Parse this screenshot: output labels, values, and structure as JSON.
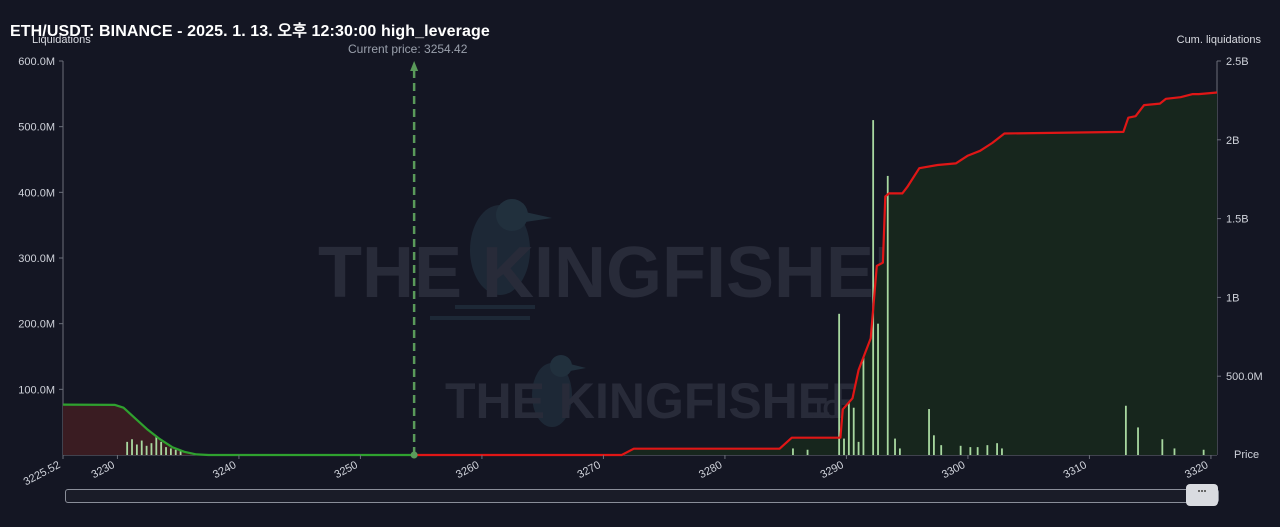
{
  "header": {
    "title": "ETH/USDT: BINANCE - 2025. 1. 13. 오후 12:30:00 high_leverage",
    "left_axis_title": "Liquidations",
    "right_axis_title": "Cum. liquidations",
    "current_price_label": "Current price: 3254.42",
    "x_axis_title": "Price"
  },
  "watermark": {
    "text": "THE KINGFISHER",
    "suffix": ".IO"
  },
  "colors": {
    "background": "#141623",
    "long_cum_line": "#2fa12f",
    "short_cum_line": "#e01616",
    "long_fill": "#3a1c22",
    "short_fill": "#17261d",
    "bars": "#a8d8a0",
    "current_price_line": "#5a9a5a"
  },
  "chart_data": {
    "type": "line",
    "title": "ETH/USDT: BINANCE - 2025. 1. 13. 오후 12:30:00 high_leverage",
    "xlabel": "Price",
    "ylabel_left": "Liquidations",
    "ylabel_right": "Cum. liquidations",
    "x_range": [
      3225.52,
      3320.5
    ],
    "x_ticks": [
      3225.52,
      3230,
      3240,
      3250,
      3260,
      3270,
      3280,
      3290,
      3300,
      3310,
      3320
    ],
    "x_tick_labels": [
      "3225.52",
      "3230",
      "3240",
      "3250",
      "3260",
      "3270",
      "3280",
      "3290",
      "3300",
      "3310",
      "3320"
    ],
    "ylim_left": [
      0,
      600000000
    ],
    "y_left_ticks": [
      100000000,
      200000000,
      300000000,
      400000000,
      500000000,
      600000000
    ],
    "y_left_tick_labels": [
      "100.0M",
      "200.0M",
      "300.0M",
      "400.0M",
      "500.0M",
      "600.0M"
    ],
    "ylim_right": [
      0,
      2500000000
    ],
    "y_right_ticks": [
      500000000,
      1000000000,
      1500000000,
      2000000000,
      2500000000
    ],
    "y_right_tick_labels": [
      "500.0M",
      "1B",
      "1.5B",
      "2B",
      "2.5B"
    ],
    "current_price": 3254.42,
    "series": [
      {
        "name": "long",
        "axis": "right",
        "x": [
          3225.52,
          3229.8,
          3230.5,
          3231.5,
          3232.5,
          3233.5,
          3234.5,
          3235.5,
          3236.5,
          3237.5,
          3254.42
        ],
        "y": [
          320000000,
          318000000,
          300000000,
          230000000,
          160000000,
          100000000,
          50000000,
          20000000,
          4000000,
          0,
          0
        ]
      },
      {
        "name": "short",
        "axis": "right",
        "x": [
          3254.42,
          3271.5,
          3272.5,
          3284.5,
          3285.5,
          3289.5,
          3289.7,
          3290.5,
          3291.0,
          3292.0,
          3292.5,
          3293.0,
          3293.2,
          3293.5,
          3294.6,
          3295.0,
          3296.0,
          3297.5,
          3299.0,
          3300.0,
          3301.0,
          3302.0,
          3303.0,
          3312.8,
          3313.2,
          3313.8,
          3314.5,
          3315.8,
          3316.3,
          3317.5,
          3318.5,
          3319.0,
          3320.5
        ],
        "y": [
          0,
          0,
          40000000,
          40000000,
          110000000,
          110000000,
          290000000,
          360000000,
          540000000,
          740000000,
          1200000000,
          1220000000,
          1640000000,
          1660000000,
          1660000000,
          1700000000,
          1820000000,
          1840000000,
          1850000000,
          1900000000,
          1930000000,
          1980000000,
          2040000000,
          2050000000,
          2140000000,
          2150000000,
          2220000000,
          2230000000,
          2260000000,
          2270000000,
          2290000000,
          2290000000,
          2300000000
        ]
      }
    ],
    "bars": {
      "axis": "left",
      "x": [
        3230.8,
        3231.2,
        3231.6,
        3232.0,
        3232.4,
        3232.8,
        3233.2,
        3233.6,
        3234.0,
        3234.4,
        3234.8,
        3235.2,
        3285.6,
        3286.8,
        3289.4,
        3289.8,
        3290.2,
        3290.6,
        3291.0,
        3291.4,
        3292.2,
        3292.6,
        3293.4,
        3294.0,
        3294.4,
        3296.8,
        3297.2,
        3297.8,
        3299.4,
        3300.2,
        3300.8,
        3301.6,
        3302.4,
        3302.8,
        3313.0,
        3314.0,
        3316.0,
        3317.0,
        3319.4
      ],
      "values": [
        20000000,
        24000000,
        16000000,
        22000000,
        14000000,
        18000000,
        28000000,
        20000000,
        12000000,
        10000000,
        8000000,
        6000000,
        10000000,
        8000000,
        215000000,
        25000000,
        80000000,
        72000000,
        20000000,
        150000000,
        510000000,
        200000000,
        425000000,
        25000000,
        10000000,
        70000000,
        30000000,
        15000000,
        14000000,
        12000000,
        12000000,
        15000000,
        18000000,
        10000000,
        75000000,
        42000000,
        24000000,
        10000000,
        8000000
      ]
    }
  }
}
